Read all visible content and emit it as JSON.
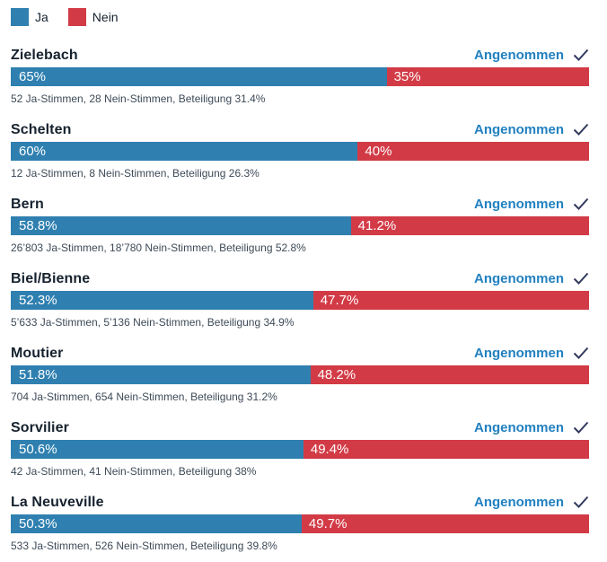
{
  "legend": {
    "ja_label": "Ja",
    "nein_label": "Nein"
  },
  "colors": {
    "yes": "#2f80b0",
    "no": "#d23b46",
    "title_text": "#16222e",
    "detail_text": "#3d4a57",
    "status_text": "#2180c0",
    "check_icon": "#323a5e",
    "bar_label_text": "#ffffff",
    "background": "#ffffff"
  },
  "rows": [
    {
      "name": "Zielebach",
      "status": "Angenommen",
      "yes_label": "65%",
      "no_label": "35%",
      "yes_value": 65,
      "no_value": 35,
      "details": "52 Ja-Stimmen, 28 Nein-Stimmen, Beteiligung 31.4%"
    },
    {
      "name": "Schelten",
      "status": "Angenommen",
      "yes_label": "60%",
      "no_label": "40%",
      "yes_value": 60,
      "no_value": 40,
      "details": "12 Ja-Stimmen, 8 Nein-Stimmen, Beteiligung 26.3%"
    },
    {
      "name": "Bern",
      "status": "Angenommen",
      "yes_label": "58.8%",
      "no_label": "41.2%",
      "yes_value": 58.8,
      "no_value": 41.2,
      "details": "26’803 Ja-Stimmen, 18’780 Nein-Stimmen, Beteiligung 52.8%"
    },
    {
      "name": "Biel/Bienne",
      "status": "Angenommen",
      "yes_label": "52.3%",
      "no_label": "47.7%",
      "yes_value": 52.3,
      "no_value": 47.7,
      "details": "5’633 Ja-Stimmen, 5’136 Nein-Stimmen, Beteiligung 34.9%"
    },
    {
      "name": "Moutier",
      "status": "Angenommen",
      "yes_label": "51.8%",
      "no_label": "48.2%",
      "yes_value": 51.8,
      "no_value": 48.2,
      "details": "704 Ja-Stimmen, 654 Nein-Stimmen, Beteiligung 31.2%"
    },
    {
      "name": "Sorvilier",
      "status": "Angenommen",
      "yes_label": "50.6%",
      "no_label": "49.4%",
      "yes_value": 50.6,
      "no_value": 49.4,
      "details": "42 Ja-Stimmen, 41 Nein-Stimmen, Beteiligung 38%"
    },
    {
      "name": "La Neuveville",
      "status": "Angenommen",
      "yes_label": "50.3%",
      "no_label": "49.7%",
      "yes_value": 50.3,
      "no_value": 49.7,
      "details": "533 Ja-Stimmen, 526 Nein-Stimmen, Beteiligung 39.8%"
    }
  ],
  "chart_data": {
    "type": "bar",
    "subtype": "horizontal-stacked",
    "title": "",
    "categories": [
      "Zielebach",
      "Schelten",
      "Bern",
      "Biel/Bienne",
      "Moutier",
      "Sorvilier",
      "La Neuveville"
    ],
    "series": [
      {
        "name": "Ja",
        "color": "#2f80b0",
        "values": [
          65,
          60,
          58.8,
          52.3,
          51.8,
          50.6,
          50.3
        ]
      },
      {
        "name": "Nein",
        "color": "#d23b46",
        "values": [
          35,
          40,
          41.2,
          47.7,
          48.2,
          49.4,
          49.7
        ]
      }
    ],
    "unit": "%",
    "xlim": [
      0,
      100
    ],
    "grid": false,
    "legend_position": "top-left",
    "results": [
      {
        "municipality": "Zielebach",
        "ja_stimmen": 52,
        "nein_stimmen": 28,
        "beteiligung_pct": 31.4,
        "result": "Angenommen"
      },
      {
        "municipality": "Schelten",
        "ja_stimmen": 12,
        "nein_stimmen": 8,
        "beteiligung_pct": 26.3,
        "result": "Angenommen"
      },
      {
        "municipality": "Bern",
        "ja_stimmen": 26803,
        "nein_stimmen": 18780,
        "beteiligung_pct": 52.8,
        "result": "Angenommen"
      },
      {
        "municipality": "Biel/Bienne",
        "ja_stimmen": 5633,
        "nein_stimmen": 5136,
        "beteiligung_pct": 34.9,
        "result": "Angenommen"
      },
      {
        "municipality": "Moutier",
        "ja_stimmen": 704,
        "nein_stimmen": 654,
        "beteiligung_pct": 31.2,
        "result": "Angenommen"
      },
      {
        "municipality": "Sorvilier",
        "ja_stimmen": 42,
        "nein_stimmen": 41,
        "beteiligung_pct": 38,
        "result": "Angenommen"
      },
      {
        "municipality": "La Neuveville",
        "ja_stimmen": 533,
        "nein_stimmen": 526,
        "beteiligung_pct": 39.8,
        "result": "Angenommen"
      }
    ]
  }
}
